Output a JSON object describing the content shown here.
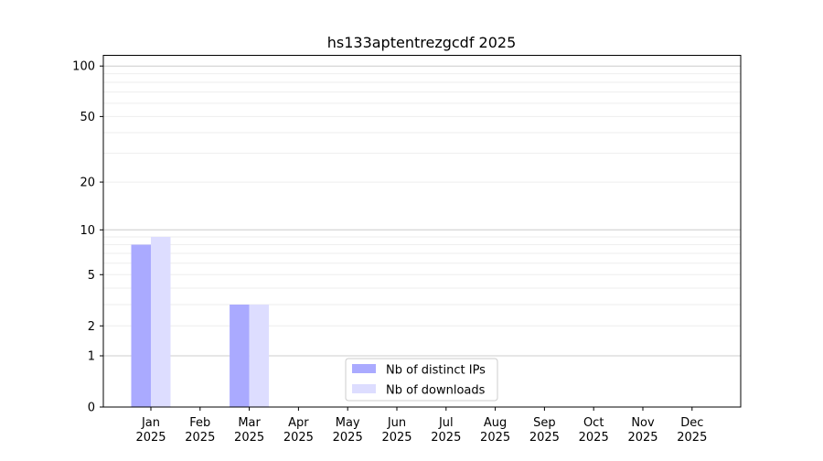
{
  "chart_data": {
    "type": "bar",
    "title": "hs133aptentrezgcdf 2025",
    "xlabel": "",
    "ylabel": "",
    "y_scale": "symlog (log of 1+y)",
    "ylim": [
      0,
      110
    ],
    "y_ticks": [
      0,
      1,
      2,
      5,
      10,
      20,
      50,
      100
    ],
    "y_tick_labels": [
      "0",
      "1",
      "2",
      "5",
      "10",
      "20",
      "50",
      "100"
    ],
    "grid": true,
    "legend_position": "bottom-center",
    "categories": [
      [
        "Jan",
        "2025"
      ],
      [
        "Feb",
        "2025"
      ],
      [
        "Mar",
        "2025"
      ],
      [
        "Apr",
        "2025"
      ],
      [
        "May",
        "2025"
      ],
      [
        "Jun",
        "2025"
      ],
      [
        "Jul",
        "2025"
      ],
      [
        "Aug",
        "2025"
      ],
      [
        "Sep",
        "2025"
      ],
      [
        "Oct",
        "2025"
      ],
      [
        "Nov",
        "2025"
      ],
      [
        "Dec",
        "2025"
      ]
    ],
    "series": [
      {
        "name": "Nb of distinct IPs",
        "color": "#aaaaff",
        "values": [
          8,
          0,
          3,
          0,
          0,
          0,
          0,
          0,
          0,
          0,
          0,
          0
        ]
      },
      {
        "name": "Nb of downloads",
        "color": "#ddddff",
        "values": [
          9,
          0,
          3,
          0,
          0,
          0,
          0,
          0,
          0,
          0,
          0,
          0
        ]
      }
    ]
  }
}
